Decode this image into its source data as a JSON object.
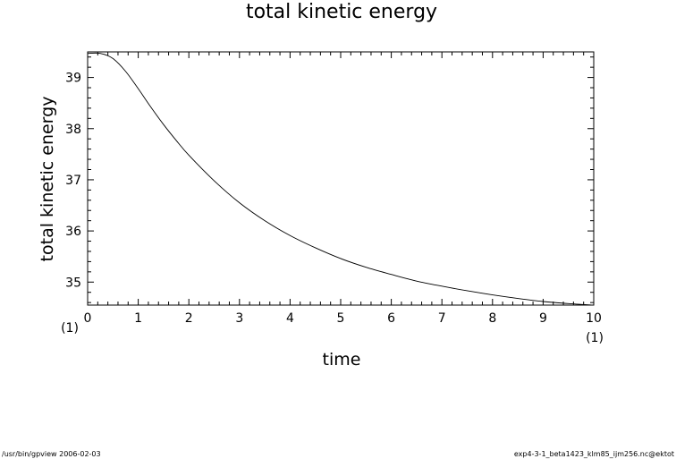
{
  "chart_data": {
    "type": "line",
    "title": "total kinetic energy",
    "xlabel": "time",
    "ylabel": "total kinetic energy",
    "x_unit_label": "(1)",
    "y_unit_label": "(1)",
    "xlim": [
      0,
      10
    ],
    "ylim": [
      34.55,
      39.5
    ],
    "xticks": [
      "0",
      "1",
      "2",
      "3",
      "4",
      "5",
      "6",
      "7",
      "8",
      "9",
      "10"
    ],
    "yticks": [
      "35",
      "36",
      "37",
      "38",
      "39"
    ],
    "grid": false,
    "series": [
      {
        "x": [
          0,
          0.25,
          0.5,
          0.75,
          1,
          1.25,
          1.5,
          1.75,
          2,
          2.5,
          3,
          3.5,
          4,
          4.5,
          5,
          5.5,
          6,
          6.5,
          7,
          7.5,
          8,
          8.5,
          9,
          9.5,
          10
        ],
        "y": [
          39.47,
          39.47,
          39.37,
          39.12,
          38.78,
          38.42,
          38.08,
          37.77,
          37.48,
          36.98,
          36.55,
          36.2,
          35.91,
          35.67,
          35.46,
          35.29,
          35.15,
          35.02,
          34.92,
          34.83,
          34.75,
          34.68,
          34.62,
          34.58,
          34.55
        ]
      }
    ]
  },
  "footer": {
    "left": "/usr/bin/gpview   2006-02-03",
    "right": "exp4-3-1_beta1423_klm85_ijm256.nc@ektot"
  }
}
